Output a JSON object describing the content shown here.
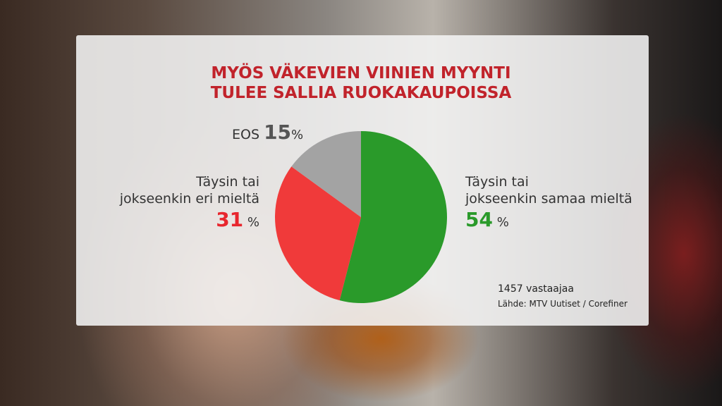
{
  "title_line1": "MYÖS VÄKEVIEN VIINIEN MYYNTI",
  "title_line2": "TULEE SALLIA RUOKAKAUPOISSA",
  "respondents": "1457 vastaajaa",
  "source": "Lähde: MTV Uutiset / Corefiner",
  "chart_data": {
    "type": "pie",
    "title": "MYÖS VÄKEVIEN VIINIEN MYYNTI TULEE SALLIA RUOKAKAUPOISSA",
    "slices": [
      {
        "label_line1": "Täysin tai",
        "label_line2": "jokseenkin samaa mieltä",
        "value": 54,
        "value_text": "54",
        "unit": "%",
        "color": "#2a9a2a"
      },
      {
        "label_line1": "Täysin tai",
        "label_line2": "jokseenkin eri mieltä",
        "value": 31,
        "value_text": "31",
        "unit": "%",
        "color": "#f03a3a"
      },
      {
        "label_line1": "EOS",
        "value": 15,
        "value_text": "15",
        "unit": "%",
        "color": "#a3a3a3"
      }
    ]
  }
}
